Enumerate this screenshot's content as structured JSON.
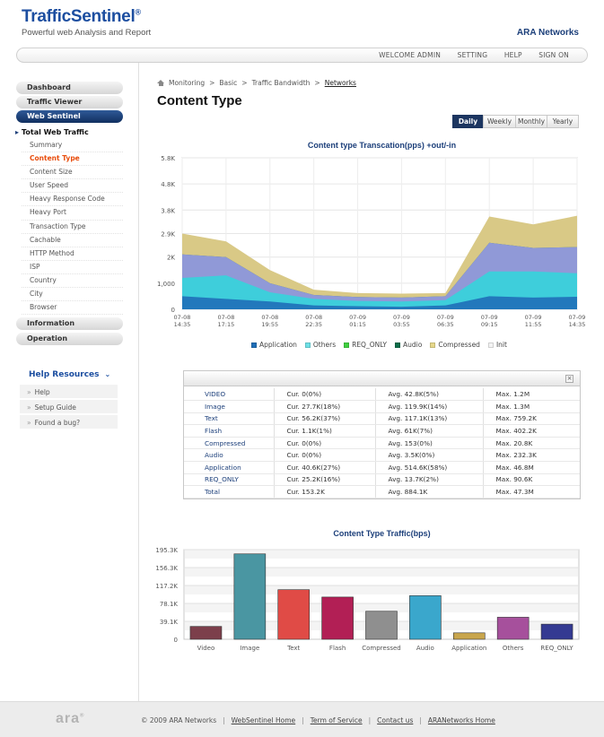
{
  "header": {
    "brand": "TrafficSentinel",
    "brand_mark": "®",
    "tagline": "Powerful web Analysis and Report",
    "company": "ARA Networks",
    "top_links": [
      "WELCOME ADMIN",
      "SETTING",
      "HELP",
      "SIGN ON"
    ]
  },
  "sidebar": {
    "sections": [
      "Dashboard",
      "Traffic Viewer",
      "Web Sentinel"
    ],
    "active_section": "Web Sentinel",
    "sub_title": "Total Web Traffic",
    "sub_items": [
      "Summary",
      "Content Type",
      "Content Size",
      "User Speed",
      "Heavy Response Code",
      "Heavy Port",
      "Transaction Type",
      "Cachable",
      "HTTP Method",
      "ISP",
      "Country",
      "City",
      "Browser"
    ],
    "current_item": "Content Type",
    "bottom_sections": [
      "Information",
      "Operation"
    ],
    "help_title": "Help Resources",
    "help_items": [
      "Help",
      "Setup Guide",
      "Found a bug?"
    ]
  },
  "breadcrumb": [
    "Monitoring",
    "Basic",
    "Traffic Bandwidth",
    "Networks"
  ],
  "page_title": "Content Type",
  "period_tabs": [
    "Daily",
    "Weekly",
    "Monthly",
    "Yearly"
  ],
  "active_period": "Daily",
  "stats": {
    "rows": [
      {
        "name": "VIDEO",
        "cur": "Cur. 0(0%)",
        "avg": "Avg. 42.8K(5%)",
        "max": "Max. 1.2M"
      },
      {
        "name": "Image",
        "cur": "Cur. 27.7K(18%)",
        "avg": "Avg. 119.9K(14%)",
        "max": "Max. 1.3M"
      },
      {
        "name": "Text",
        "cur": "Cur. 56.2K(37%)",
        "avg": "Avg. 117.1K(13%)",
        "max": "Max. 759.2K"
      },
      {
        "name": "Flash",
        "cur": "Cur. 1.1K(1%)",
        "avg": "Avg. 61K(7%)",
        "max": "Max. 402.2K"
      },
      {
        "name": "Compressed",
        "cur": "Cur. 0(0%)",
        "avg": "Avg. 153(0%)",
        "max": "Max. 20.8K"
      },
      {
        "name": "Audio",
        "cur": "Cur. 0(0%)",
        "avg": "Avg. 3.5K(0%)",
        "max": "Max. 232.3K"
      },
      {
        "name": "Application",
        "cur": "Cur. 40.6K(27%)",
        "avg": "Avg. 514.6K(58%)",
        "max": "Max. 46.8M"
      },
      {
        "name": "REQ_ONLY",
        "cur": "Cur. 25.2K(16%)",
        "avg": "Avg. 13.7K(2%)",
        "max": "Max. 90.6K"
      },
      {
        "name": "Total",
        "cur": "Cur. 153.2K",
        "avg": "Avg. 884.1K",
        "max": "Max. 47.3M"
      }
    ]
  },
  "footer": {
    "logo": "ara",
    "copyright": "© 2009 ARA Networks",
    "links": [
      "WebSentinel Home",
      "Term of Service",
      "Contact us",
      "ARANetworks Home"
    ]
  },
  "chart_data": [
    {
      "type": "area",
      "title": "Content type Transcation(pps) +out/-in",
      "stacked": true,
      "x": [
        "07-08 14:35",
        "07-08 17:15",
        "07-08 19:55",
        "07-08 22:35",
        "07-09 01:15",
        "07-09 03:55",
        "07-09 06:35",
        "07-09 09:15",
        "07-09 11:55",
        "07-09 14:35"
      ],
      "x_tick_labels": [
        [
          "07-08",
          "14:35"
        ],
        [
          "07-08",
          "17:15"
        ],
        [
          "07-08",
          "19:55"
        ],
        [
          "07-08",
          "22:35"
        ],
        [
          "07-09",
          "01:15"
        ],
        [
          "07-09",
          "03:55"
        ],
        [
          "07-09",
          "06:35"
        ],
        [
          "07-09",
          "09:15"
        ],
        [
          "07-09",
          "11:55"
        ],
        [
          "07-09",
          "14:35"
        ]
      ],
      "y_tick_labels": [
        "0",
        "1,000",
        "2K",
        "2.9K",
        "3.8K",
        "4.8K",
        "5.8K"
      ],
      "y_ticks": [
        0,
        1000,
        2000,
        2900,
        3800,
        4800,
        5800
      ],
      "ylim": [
        0,
        5800
      ],
      "grid": true,
      "legend_position": "bottom",
      "series": [
        {
          "name": "Application",
          "color": "#1f6fb8",
          "values": [
            500,
            400,
            300,
            150,
            120,
            100,
            150,
            500,
            450,
            480
          ]
        },
        {
          "name": "Others",
          "color": "#35d4dc",
          "values": [
            700,
            900,
            350,
            250,
            200,
            200,
            200,
            950,
            1000,
            900
          ]
        },
        {
          "name": "REQ_ONLY",
          "color": "#9c9ce6",
          "values": [
            900,
            700,
            350,
            150,
            150,
            150,
            150,
            1100,
            900,
            1000
          ]
        },
        {
          "name": "Audio",
          "color": "#0d6e4a",
          "values": [
            0,
            0,
            0,
            0,
            0,
            0,
            0,
            0,
            0,
            0
          ]
        },
        {
          "name": "Compressed",
          "color": "#d6c47a",
          "values": [
            800,
            600,
            500,
            200,
            150,
            150,
            120,
            1000,
            900,
            1200
          ]
        },
        {
          "name": "Init",
          "color": "#f0f0f0",
          "values": [
            0,
            0,
            0,
            0,
            0,
            0,
            0,
            0,
            0,
            0
          ]
        }
      ],
      "legend": [
        {
          "name": "Application",
          "color": "#1f6fb8"
        },
        {
          "name": "Others",
          "color": "#6fe0e6"
        },
        {
          "name": "REQ_ONLY",
          "color": "#40d040"
        },
        {
          "name": "Audio",
          "color": "#0d6e4a"
        },
        {
          "name": "Compressed",
          "color": "#e6d78a"
        },
        {
          "name": "Init",
          "color": "#f4f4f4"
        }
      ]
    },
    {
      "type": "bar",
      "title": "Content Type Traffic(bps)",
      "categories": [
        "Video",
        "Image",
        "Text",
        "Flash",
        "Compressed",
        "Audio",
        "Application",
        "Others",
        "REQ_ONLY"
      ],
      "values": [
        28,
        186,
        108,
        92,
        61,
        95,
        14,
        48,
        33
      ],
      "y_tick_labels": [
        "0",
        "39.1K",
        "78.1K",
        "117.2K",
        "156.3K",
        "195.3K"
      ],
      "y_ticks": [
        0,
        39.1,
        78.1,
        117.2,
        156.3,
        195.3
      ],
      "ylim": [
        0,
        195.3
      ],
      "colors": [
        "#7c3f4b",
        "#4a96a2",
        "#e04b46",
        "#b21f55",
        "#8f8f8f",
        "#3aa7cc",
        "#c9a64d",
        "#a6509c",
        "#343a92"
      ],
      "grid": true
    }
  ]
}
